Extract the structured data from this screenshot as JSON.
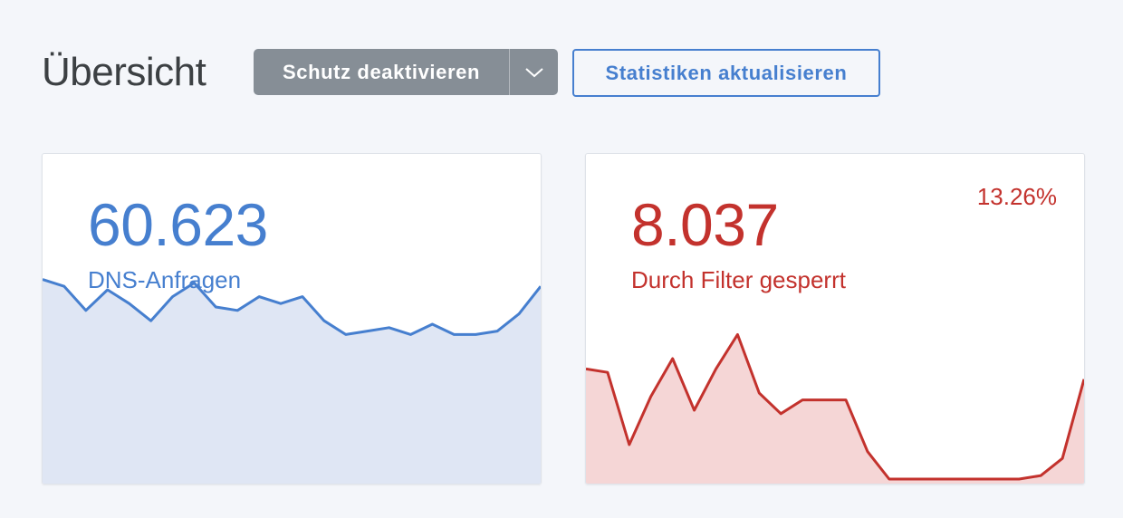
{
  "header": {
    "title": "Übersicht",
    "disable_protection_label": "Schutz deaktivieren",
    "dropdown_icon": "chevron-down-icon",
    "refresh_stats_label": "Statistiken aktualisieren",
    "colors": {
      "gray_button": "#868e96",
      "blue": "#467fcf"
    }
  },
  "cards": [
    {
      "value": "60.623",
      "label": "DNS-Anfragen",
      "color": "#467fcf",
      "fill": "#dfe6f4",
      "trend": [
        58,
        56,
        49,
        55,
        51,
        46,
        53,
        57,
        50,
        49,
        53,
        51,
        53,
        46,
        42,
        43,
        44,
        42,
        45,
        42,
        42,
        43,
        48,
        56
      ]
    },
    {
      "value": "8.037",
      "label": "Durch Filter gesperrt",
      "percent": "13.26%",
      "color": "#c3322d",
      "fill": "#f5d6d6",
      "trend": [
        32,
        31,
        10,
        24,
        35,
        20,
        32,
        42,
        25,
        19,
        23,
        23,
        23,
        8,
        0,
        0,
        0,
        0,
        0,
        0,
        0,
        1,
        6,
        29
      ]
    }
  ]
}
